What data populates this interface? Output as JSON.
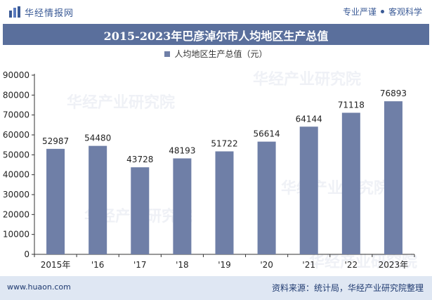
{
  "header": {
    "brand": "华经情报网",
    "slogan_left": "专业严谨",
    "slogan_right": "客观科学"
  },
  "watermark": "华经产业研究院",
  "chart_data": {
    "type": "bar",
    "title": "2015-2023年巴彦淖尔市人均地区生产总值",
    "categories": [
      "2015年",
      "'16",
      "'17",
      "'18",
      "'19",
      "'20",
      "'21",
      "'22",
      "2023年"
    ],
    "series": [
      {
        "name": "人均地区生产总值（元）",
        "values": [
          52987,
          54480,
          43728,
          48193,
          51722,
          56614,
          64144,
          71118,
          76893
        ]
      }
    ],
    "ylim": [
      0,
      90000
    ],
    "yticks": [
      0,
      10000,
      20000,
      30000,
      40000,
      50000,
      60000,
      70000,
      80000,
      90000
    ],
    "grid": false,
    "legend": "top-center",
    "bar_color": "#6f7fa7"
  },
  "footer": {
    "site": "www.huaon.com",
    "source": "资料来源：统计局，华经产业研究院整理"
  }
}
